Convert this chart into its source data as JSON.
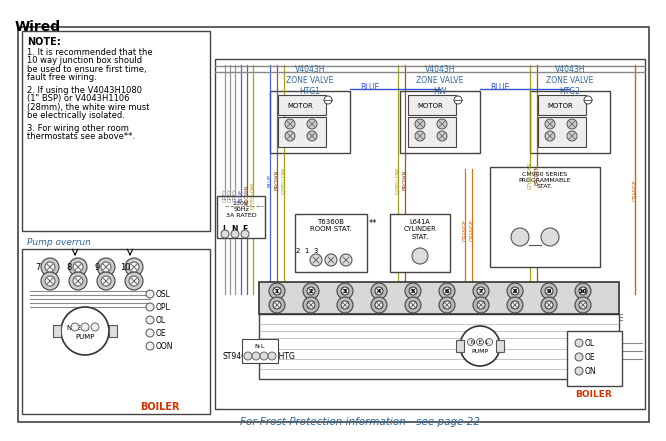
{
  "title": "Wired",
  "bg_color": "#ffffff",
  "note_title": "NOTE:",
  "note_lines": [
    "1. It is recommended that the",
    "10 way junction box should",
    "be used to ensure first time,",
    "fault free wiring.",
    "",
    "2. If using the V4043H1080",
    "(1\" BSP) or V4043H1106",
    "(28mm), the white wire must",
    "be electrically isolated.",
    "",
    "3. For wiring other room",
    "thermostats see above**."
  ],
  "pump_overrun_label": "Pump overrun",
  "zone_valve_labels": [
    "V4043H\nZONE VALVE\nHTG1",
    "V4043H\nZONE VALVE\nHW",
    "V4043H\nZONE VALVE\nHTG2"
  ],
  "frost_text": "For Frost Protection information - see page 22",
  "grey": "#888888",
  "blue": "#3355cc",
  "brown": "#8B4513",
  "gyellow": "#999900",
  "orange": "#cc6600",
  "text_blue": "#336699",
  "boiler_red": "#cc3300",
  "voltage": "230V\n50Hz\n3A RATED",
  "room_stat": "T6360B\nROOM STAT.",
  "cylinder_stat": "L641A\nCYLINDER\nSTAT.",
  "prog_stat": "CM900 SERIES\nPROGRAMMABLE\nSTAT.",
  "st9400": "ST9400A/C",
  "hw_htg": "HW HTG",
  "boiler_text": "BOILER",
  "motor_text": "MOTOR",
  "pump_text": "PUMP",
  "terminal_numbers": [
    "1",
    "2",
    "3",
    "4",
    "5",
    "6",
    "7",
    "8",
    "9",
    "10"
  ],
  "pump_terminals": [
    "SL",
    "PL",
    "L",
    "E",
    "ON"
  ],
  "boiler_terminals": [
    "L",
    "E",
    "N"
  ]
}
